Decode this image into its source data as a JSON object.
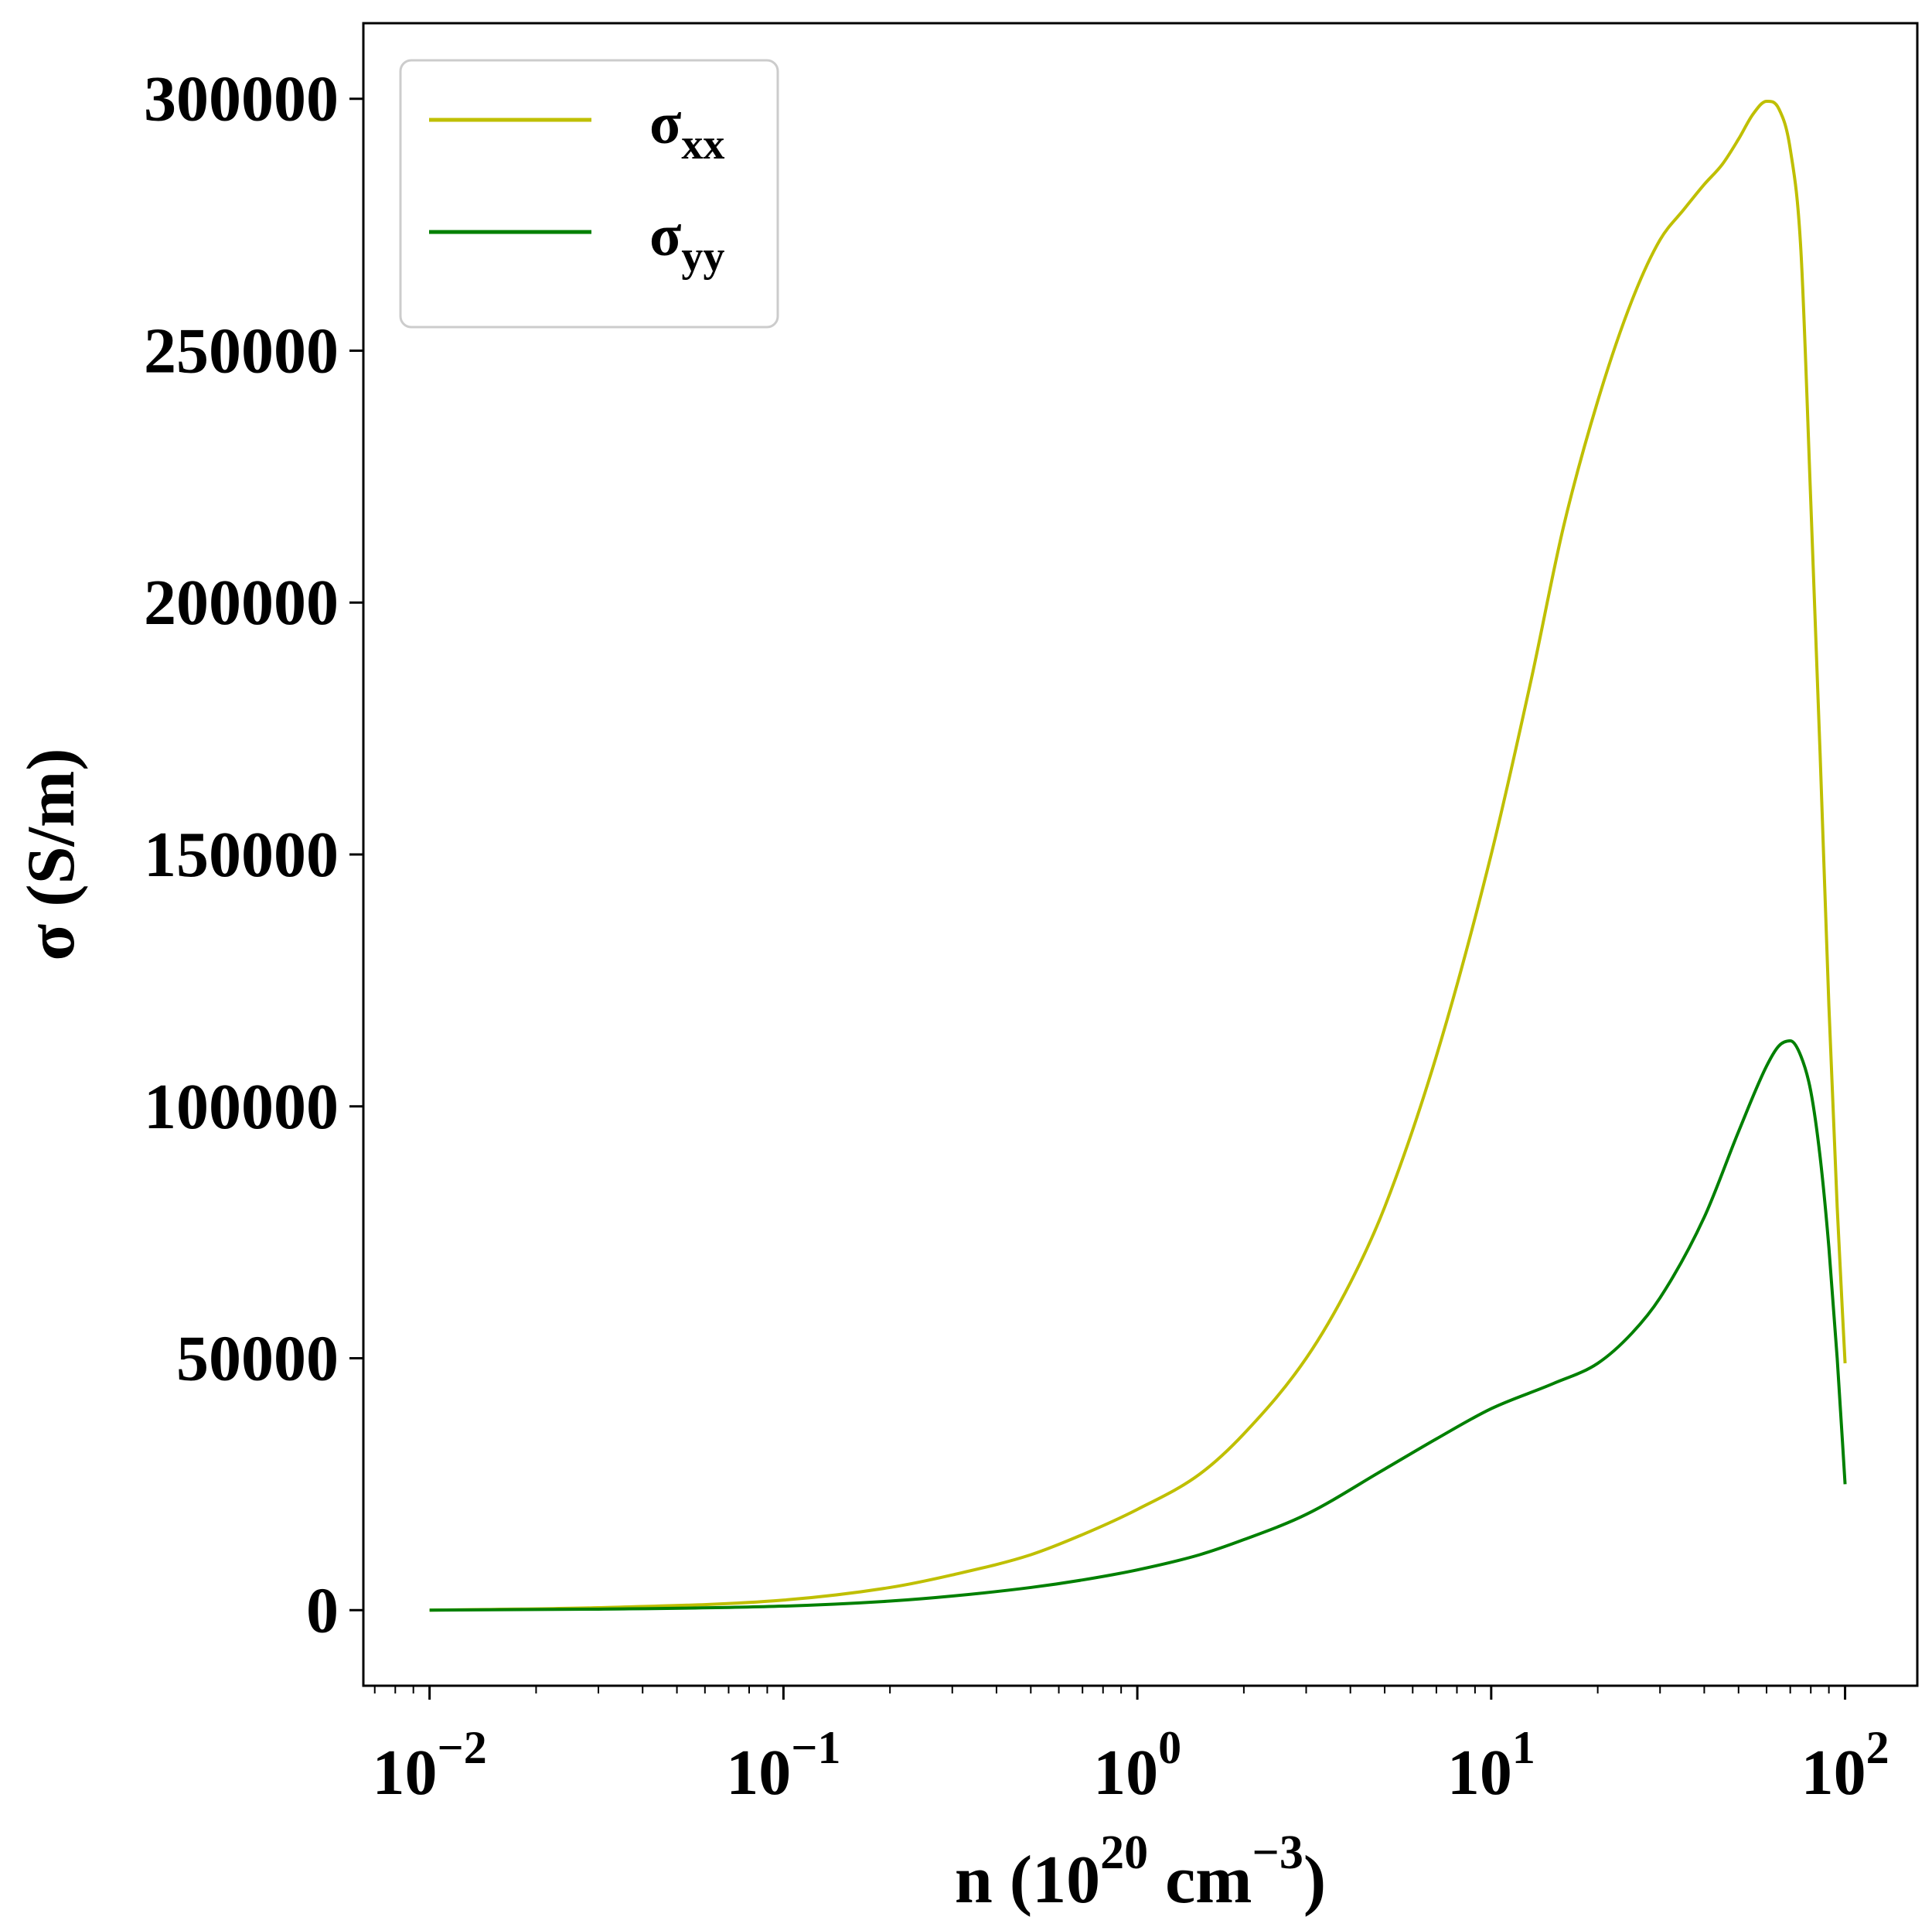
{
  "chart_data": {
    "type": "line",
    "xlabel": "n (10^20 cm^-3)",
    "xlabel_parts": {
      "lead": "n (10",
      "exp1": "20",
      "mid": " cm",
      "exp2": "−3",
      "tail": ")"
    },
    "ylabel": "σ (S/m)",
    "x_scale": "log",
    "xlim": [
      0.0065,
      160
    ],
    "ylim": [
      -15000,
      315000
    ],
    "x_ticks": [
      {
        "value": 0.01,
        "base": "10",
        "exp": "−2"
      },
      {
        "value": 0.1,
        "base": "10",
        "exp": "−1"
      },
      {
        "value": 1,
        "base": "10",
        "exp": "0"
      },
      {
        "value": 10,
        "base": "10",
        "exp": "1"
      },
      {
        "value": 100,
        "base": "10",
        "exp": "2"
      }
    ],
    "y_ticks": [
      {
        "value": 0,
        "label": "0"
      },
      {
        "value": 50000,
        "label": "50000"
      },
      {
        "value": 100000,
        "label": "100000"
      },
      {
        "value": 150000,
        "label": "150000"
      },
      {
        "value": 200000,
        "label": "200000"
      },
      {
        "value": 250000,
        "label": "250000"
      },
      {
        "value": 300000,
        "label": "300000"
      }
    ],
    "grid": false,
    "legend_position": "top-left",
    "series": [
      {
        "name": "σxx",
        "name_base": "σ",
        "name_sub": "xx",
        "color": "#bfbf00",
        "points": [
          [
            0.01,
            0
          ],
          [
            0.03,
            500
          ],
          [
            0.1,
            2000
          ],
          [
            0.2,
            4500
          ],
          [
            0.3,
            7000
          ],
          [
            0.5,
            11000
          ],
          [
            0.7,
            15000
          ],
          [
            1,
            20000
          ],
          [
            1.5,
            27000
          ],
          [
            2,
            35000
          ],
          [
            3,
            50000
          ],
          [
            4,
            65000
          ],
          [
            5,
            80000
          ],
          [
            7,
            110000
          ],
          [
            10,
            150000
          ],
          [
            13,
            185000
          ],
          [
            16,
            215000
          ],
          [
            20,
            240000
          ],
          [
            25,
            260000
          ],
          [
            30,
            272000
          ],
          [
            35,
            278000
          ],
          [
            40,
            283000
          ],
          [
            45,
            287000
          ],
          [
            50,
            292000
          ],
          [
            55,
            297000
          ],
          [
            60,
            299500
          ],
          [
            65,
            298000
          ],
          [
            70,
            290000
          ],
          [
            75,
            270000
          ],
          [
            80,
            220000
          ],
          [
            85,
            170000
          ],
          [
            90,
            120000
          ],
          [
            95,
            80000
          ],
          [
            100,
            49000
          ]
        ]
      },
      {
        "name": "σyy",
        "name_base": "σ",
        "name_sub": "yy",
        "color": "#008000",
        "points": [
          [
            0.01,
            0
          ],
          [
            0.03,
            200
          ],
          [
            0.1,
            800
          ],
          [
            0.2,
            1800
          ],
          [
            0.3,
            2800
          ],
          [
            0.5,
            4500
          ],
          [
            0.7,
            6000
          ],
          [
            1,
            8000
          ],
          [
            1.5,
            11000
          ],
          [
            2,
            14000
          ],
          [
            3,
            19000
          ],
          [
            5,
            28000
          ],
          [
            7,
            34000
          ],
          [
            10,
            40000
          ],
          [
            15,
            45000
          ],
          [
            20,
            49000
          ],
          [
            25,
            55000
          ],
          [
            30,
            62000
          ],
          [
            40,
            78000
          ],
          [
            50,
            95000
          ],
          [
            60,
            108000
          ],
          [
            65,
            112000
          ],
          [
            70,
            113000
          ],
          [
            75,
            110000
          ],
          [
            80,
            103000
          ],
          [
            85,
            90000
          ],
          [
            90,
            72000
          ],
          [
            95,
            50000
          ],
          [
            100,
            25000
          ]
        ]
      }
    ]
  }
}
